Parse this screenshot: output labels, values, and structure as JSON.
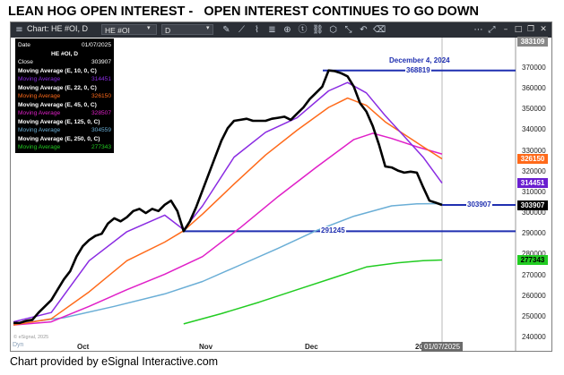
{
  "title": "LEAN HOG OPEN INTEREST -   OPEN INTEREST CONTINUES TO GO DOWN",
  "toolbar": {
    "chart_label": "Chart: HE #OI, D",
    "symbol": "HE #OI",
    "interval": "D",
    "menu_icon": "hamburger-icon",
    "bg": "#2b2f36"
  },
  "legend": {
    "date_label": "Date",
    "date_value": "01/07/2025",
    "symbol_header": "HE #OI, D",
    "close_label": "Close",
    "close_value": "303907",
    "ma_rows": [
      {
        "label": "Moving Average (E, 10, 0, C)",
        "header": true
      },
      {
        "label": "Moving Average",
        "value": "314451",
        "color": "#8a2be2"
      },
      {
        "label": "Moving Average (E, 22, 0, C)",
        "header": true
      },
      {
        "label": "Moving Average",
        "value": "326150",
        "color": "#ff6a1a"
      },
      {
        "label": "Moving Average (E, 45, 0, C)",
        "header": true
      },
      {
        "label": "Moving Average",
        "value": "328507",
        "color": "#e020c8"
      },
      {
        "label": "Moving Average (E, 125, 0, C)",
        "header": true
      },
      {
        "label": "Moving Average",
        "value": "304559",
        "color": "#6aaed6"
      },
      {
        "label": "Moving Average (E, 250, 0, C)",
        "header": true
      },
      {
        "label": "Moving Average",
        "value": "277343",
        "color": "#22cc22"
      }
    ]
  },
  "chart_data": {
    "type": "line",
    "x_tick_labels": [
      "Oct",
      "Nov",
      "Dec",
      "20"
    ],
    "y_tick_labels": [
      "240000",
      "250000",
      "260000",
      "270000",
      "280000",
      "290000",
      "300000",
      "310000",
      "320000",
      "330000",
      "340000",
      "350000",
      "360000",
      "370000",
      "383109"
    ],
    "ylim": [
      240000,
      383109
    ],
    "annotations": [
      {
        "text": "December 4,  2024",
        "color": "#1f2fb0"
      },
      {
        "text": "368819",
        "value": 368819,
        "color": "#1f2fb0"
      },
      {
        "text": "291245",
        "value": 291245,
        "color": "#1f2fb0"
      },
      {
        "text": "303907",
        "value": 303907,
        "color": "#1f2fb0"
      }
    ],
    "price_tags": [
      {
        "text": "326150",
        "value": 326150,
        "bg": "#ff6a1a",
        "fg": "#ffffff"
      },
      {
        "text": "314451",
        "value": 314451,
        "bg": "#6a1fd0",
        "fg": "#ffffff"
      },
      {
        "text": "303907",
        "value": 303907,
        "bg": "#000000",
        "fg": "#ffffff"
      },
      {
        "text": "277343",
        "value": 277343,
        "bg": "#22cc22",
        "fg": "#000000"
      },
      {
        "text": "383109",
        "value": 383109,
        "bg": "#888888",
        "fg": "#ffffff"
      }
    ],
    "date_tag": "01/07/2025",
    "watermark": "© eSignal, 2025",
    "dyn_label": "Dyn",
    "series": [
      {
        "name": "HE #OI, D",
        "color": "#000000",
        "values": [
          [
            0,
            247000
          ],
          [
            1,
            247000
          ],
          [
            2,
            248000
          ],
          [
            3,
            248500
          ],
          [
            4,
            252000
          ],
          [
            5,
            255000
          ],
          [
            6,
            258000
          ],
          [
            7,
            263000
          ],
          [
            8,
            268000
          ],
          [
            9,
            272000
          ],
          [
            10,
            279000
          ],
          [
            11,
            284000
          ],
          [
            12,
            287000
          ],
          [
            13,
            289000
          ],
          [
            14,
            290000
          ],
          [
            15,
            295000
          ],
          [
            16,
            297500
          ],
          [
            17,
            296000
          ],
          [
            18,
            298000
          ],
          [
            19,
            301000
          ],
          [
            20,
            302000
          ],
          [
            21,
            300000
          ],
          [
            22,
            302000
          ],
          [
            23,
            301000
          ],
          [
            24,
            304000
          ],
          [
            25,
            306000
          ],
          [
            26,
            301000
          ],
          [
            27,
            291245
          ],
          [
            28,
            296000
          ],
          [
            29,
            303000
          ],
          [
            30,
            311000
          ],
          [
            31,
            319000
          ],
          [
            32,
            327000
          ],
          [
            33,
            335000
          ],
          [
            34,
            341000
          ],
          [
            35,
            344500
          ],
          [
            36,
            345000
          ],
          [
            37,
            345500
          ],
          [
            38,
            344500
          ],
          [
            39,
            344500
          ],
          [
            40,
            344500
          ],
          [
            41,
            345500
          ],
          [
            42,
            346000
          ],
          [
            43,
            346500
          ],
          [
            44,
            345000
          ],
          [
            45,
            348000
          ],
          [
            46,
            351000
          ],
          [
            47,
            355000
          ],
          [
            48,
            358000
          ],
          [
            49,
            361000
          ],
          [
            50,
            368819
          ],
          [
            51,
            368500
          ],
          [
            52,
            367500
          ],
          [
            53,
            366000
          ],
          [
            54,
            361000
          ],
          [
            55,
            353000
          ],
          [
            56,
            349000
          ],
          [
            57,
            342000
          ],
          [
            58,
            333000
          ],
          [
            59,
            322500
          ],
          [
            60,
            322000
          ],
          [
            61,
            320500
          ],
          [
            62,
            319500
          ],
          [
            63,
            320000
          ],
          [
            64,
            319500
          ],
          [
            65,
            312500
          ],
          [
            66,
            306000
          ],
          [
            67,
            305000
          ],
          [
            68,
            303907
          ]
        ]
      },
      {
        "name": "Moving Average (E, 10, 0, C)",
        "color": "#8a2be2",
        "values": [
          [
            0,
            247500
          ],
          [
            6,
            252000
          ],
          [
            12,
            277000
          ],
          [
            18,
            291000
          ],
          [
            24,
            299000
          ],
          [
            27,
            292000
          ],
          [
            30,
            303500
          ],
          [
            35,
            327000
          ],
          [
            40,
            339000
          ],
          [
            45,
            346000
          ],
          [
            50,
            359000
          ],
          [
            53,
            363000
          ],
          [
            56,
            358000
          ],
          [
            59,
            347000
          ],
          [
            62,
            337000
          ],
          [
            65,
            327000
          ],
          [
            68,
            314451
          ]
        ]
      },
      {
        "name": "Moving Average (E, 22, 0, C)",
        "color": "#ff6a1a",
        "values": [
          [
            0,
            246000
          ],
          [
            6,
            249000
          ],
          [
            12,
            262000
          ],
          [
            18,
            277000
          ],
          [
            24,
            286000
          ],
          [
            27,
            291500
          ],
          [
            30,
            299500
          ],
          [
            35,
            314000
          ],
          [
            40,
            328000
          ],
          [
            45,
            340000
          ],
          [
            50,
            351000
          ],
          [
            53,
            355500
          ],
          [
            56,
            352000
          ],
          [
            59,
            344000
          ],
          [
            62,
            338000
          ],
          [
            65,
            332000
          ],
          [
            68,
            326150
          ]
        ]
      },
      {
        "name": "Moving Average (E, 45, 0, C)",
        "color": "#e020c8",
        "values": [
          [
            0,
            246000
          ],
          [
            6,
            247500
          ],
          [
            12,
            255000
          ],
          [
            18,
            263000
          ],
          [
            24,
            270500
          ],
          [
            30,
            279000
          ],
          [
            36,
            293000
          ],
          [
            42,
            308000
          ],
          [
            48,
            322000
          ],
          [
            54,
            335500
          ],
          [
            57,
            338500
          ],
          [
            60,
            336000
          ],
          [
            64,
            332000
          ],
          [
            68,
            328507
          ]
        ]
      },
      {
        "name": "Moving Average (E, 125, 0, C)",
        "color": "#6aaed6",
        "values": [
          [
            0,
            246500
          ],
          [
            8,
            249500
          ],
          [
            16,
            255000
          ],
          [
            24,
            261000
          ],
          [
            30,
            267000
          ],
          [
            36,
            275000
          ],
          [
            42,
            283000
          ],
          [
            48,
            291500
          ],
          [
            54,
            298500
          ],
          [
            60,
            303500
          ],
          [
            64,
            304500
          ],
          [
            68,
            304559
          ]
        ]
      },
      {
        "name": "Moving Average (E, 250, 0, C)",
        "color": "#22cc22",
        "values": [
          [
            27,
            246500
          ],
          [
            33,
            251500
          ],
          [
            39,
            257000
          ],
          [
            45,
            263000
          ],
          [
            51,
            269000
          ],
          [
            56,
            274000
          ],
          [
            61,
            276000
          ],
          [
            65,
            277000
          ],
          [
            68,
            277343
          ]
        ]
      }
    ]
  }
}
